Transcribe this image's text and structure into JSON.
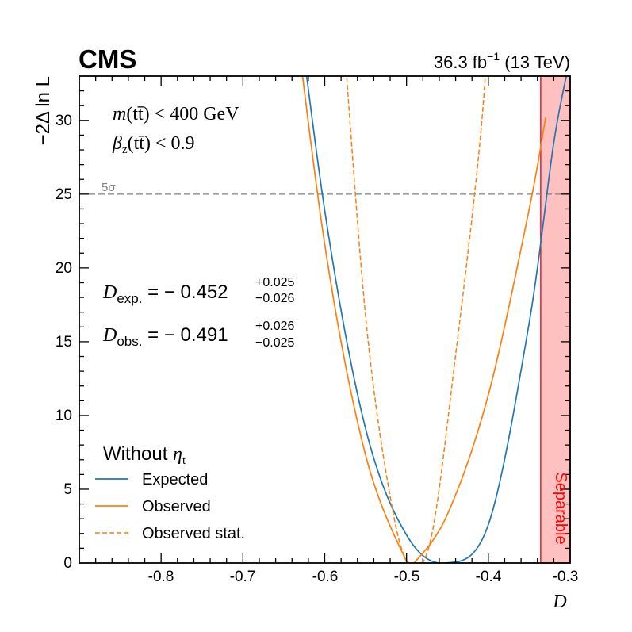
{
  "header": {
    "experiment": "CMS",
    "luminosity": "36.3 fb",
    "lumi_exponent": "−1",
    "energy": "(13 TeV)"
  },
  "selection": {
    "line1_var": "m",
    "line1_arg": "(tt̄)",
    "line1_cut": "< 400 GeV",
    "line2_var": "β",
    "line2_sub": "z",
    "line2_arg": "(tt̄)",
    "line2_cut": "< 0.9"
  },
  "results": {
    "exp_symbol": "D",
    "exp_sub": "exp.",
    "exp_value": "= − 0.452",
    "exp_up": "+0.025",
    "exp_down": "−0.026",
    "obs_symbol": "D",
    "obs_sub": "obs.",
    "obs_value": "= − 0.491",
    "obs_up": "+0.026",
    "obs_down": "−0.025"
  },
  "legend": {
    "title": "Without",
    "title_symbol": "η",
    "title_sub": "t",
    "items": [
      "Expected",
      "Observed",
      "Observed stat."
    ]
  },
  "annotations": {
    "five_sigma": "5σ",
    "separable": "Separable"
  },
  "colors": {
    "expected": "#1f77b4",
    "observed": "#ff7f0e",
    "five_sigma_line": "#808080",
    "separable_fill": "#ffc0c0",
    "separable_edge": "#e0001b",
    "separable_text": "#ff0000"
  },
  "chart_data": {
    "type": "line",
    "xlabel": "D",
    "ylabel": "−2Δ ln L",
    "xlim": [
      -0.9,
      -0.3
    ],
    "ylim": [
      0,
      33
    ],
    "x_ticks": [
      "-0.8",
      "-0.7",
      "-0.6",
      "-0.5",
      "-0.4",
      "-0.3"
    ],
    "y_ticks": [
      "0",
      "5",
      "10",
      "15",
      "20",
      "25",
      "30"
    ],
    "grid": false,
    "legend_position": "bottom-left",
    "five_sigma_level": 25,
    "separable_region": [
      -0.336,
      -0.3
    ],
    "series": [
      {
        "name": "Expected",
        "style": "solid",
        "x": [
          -0.65,
          -0.6,
          -0.55,
          -0.5,
          -0.452,
          -0.4,
          -0.35,
          -0.32,
          -0.3
        ],
        "y": [
          45.6,
          23.9,
          9.1,
          1.9,
          0.0,
          2.6,
          16.3,
          28.5,
          34.2
        ]
      },
      {
        "name": "Observed",
        "style": "solid",
        "x": [
          -0.65,
          -0.6,
          -0.55,
          -0.5,
          -0.491,
          -0.45,
          -0.4,
          -0.35,
          -0.33
        ],
        "y": [
          43.5,
          21.6,
          7.3,
          0.1,
          0.0,
          3.3,
          11.4,
          24.0,
          30.2
        ]
      },
      {
        "name": "Observed stat.",
        "style": "dashed",
        "x": [
          -0.58,
          -0.55,
          -0.52,
          -0.497,
          -0.47,
          -0.44,
          -0.41,
          -0.395
        ],
        "y": [
          38.2,
          16.7,
          4.5,
          0.0,
          1.7,
          14.1,
          28.7,
          40.5
        ]
      }
    ]
  }
}
